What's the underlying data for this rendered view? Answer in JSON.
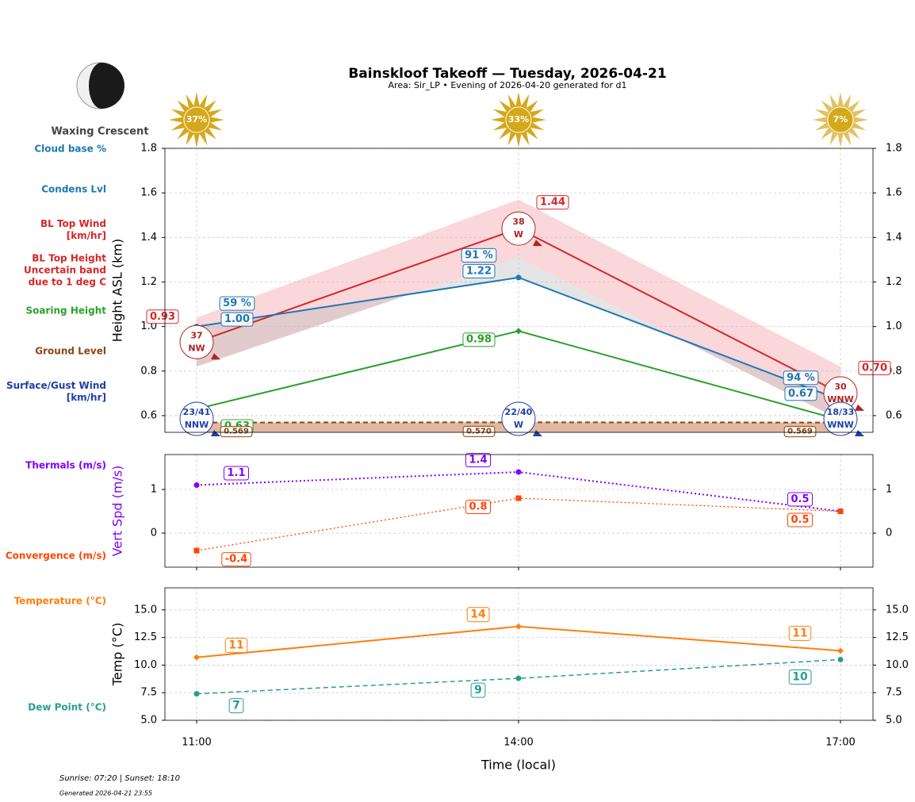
{
  "title": "Bainskloof Takeoff — Tuesday, 2026-04-21",
  "subtitle": "Area: Sir_LP • Evening of 2026-04-20 generated for d1",
  "moon_phase": "Waxing Crescent",
  "sun": {
    "values": [
      37,
      33,
      7
    ],
    "value_labels": [
      "37%",
      "33%",
      "7%"
    ],
    "color": "#d4a81a"
  },
  "footer": {
    "sun_times": "Sunrise: 07:20 | Sunset: 18:10",
    "generated": "Generated 2026-04-21 23:55"
  },
  "xlabel": "Time (local)",
  "chart_data": [
    {
      "type": "line",
      "categories": [
        "11:00",
        "14:00",
        "17:00"
      ],
      "ylabel": "Height ASL (km)",
      "ylim": [
        0.525,
        1.8
      ],
      "yticks": [
        0.6,
        0.8,
        {
          "value": 1,
          "label": "1.0"
        },
        1.2,
        1.4,
        1.6,
        1.8
      ],
      "grid": true,
      "side_labels": [
        {
          "text": "Cloud base %",
          "color": "#1f77b4"
        },
        {
          "text": "Condens Lvl",
          "color": "#1f77b4"
        },
        {
          "text": "BL Top Wind\n[km/hr]",
          "color": "#d62728"
        },
        {
          "text": "BL Top Height\nUncertain band\ndue to 1 deg C",
          "color": "#d62728"
        },
        {
          "text": "Soaring Height",
          "color": "#2ca02c"
        },
        {
          "text": "Ground Level",
          "color": "#8b4513"
        },
        {
          "text": "Surface/Gust Wind\n[km/hr]",
          "color": "#1f3fa8"
        }
      ],
      "series": [
        {
          "color": "#d62728",
          "dash": "solid",
          "marker": "none",
          "values": [
            0.93,
            1.44,
            0.7
          ],
          "value_labels": [
            "0.93",
            "1.44",
            "0.70"
          ],
          "band_low": [
            0.82,
            1.31,
            0.58
          ],
          "band_high": [
            1.04,
            1.57,
            0.82
          ],
          "band_color": "#f4a6ae"
        },
        {
          "color": "#1f77b4",
          "dash": "solid",
          "marker": "circle",
          "values": [
            1.0,
            1.22,
            0.67
          ],
          "value_labels": [
            "1.00",
            "1.22",
            "0.67"
          ],
          "cloud_pct": [
            59,
            91,
            94
          ],
          "cloud_pct_labels": [
            "59 %",
            "91 %",
            "94 %"
          ],
          "fill_color": "#b4b4b4"
        },
        {
          "color": "#2ca02c",
          "dash": "solid",
          "marker": "diamond",
          "values": [
            0.63,
            0.98,
            0.58
          ],
          "value_labels": [
            "0.63",
            "0.98",
            null
          ]
        },
        {
          "color": "#8b4513",
          "dash": "dashed",
          "marker": "none",
          "values": [
            0.569,
            0.57,
            0.569
          ],
          "value_labels": [
            "0.569",
            "0.570",
            "0.569"
          ],
          "fill_below": "#d9a88a"
        }
      ],
      "bl_wind": {
        "color": "#b22222",
        "speed": [
          37,
          38,
          30
        ],
        "dir": [
          "NW",
          "W",
          "WNW"
        ]
      },
      "surface_wind": {
        "color": "#2140a8",
        "speed": [
          23,
          22,
          18
        ],
        "gust": [
          41,
          40,
          33
        ],
        "value_labels": [
          "23/41",
          "22/40",
          "18/33"
        ],
        "dir": [
          "NNW",
          "W",
          "WNW"
        ]
      }
    },
    {
      "type": "line",
      "categories": [
        "11:00",
        "14:00",
        "17:00"
      ],
      "ylabel": "Vert Spd (m/s)",
      "ylabel_color": "#7f00ff",
      "ylim": [
        -0.78,
        1.8
      ],
      "yticks": [
        0,
        1
      ],
      "grid": true,
      "side_labels": [
        {
          "text": "Thermals (m/s)",
          "color": "#7f00ff"
        },
        {
          "text": "Convergence (m/s)",
          "color": "#ff4500"
        }
      ],
      "series": [
        {
          "color": "#7f00ff",
          "dash": "dotted",
          "width": 2,
          "marker": "circle",
          "values": [
            1.1,
            1.4,
            0.5
          ],
          "value_labels": [
            "1.1",
            "1.4",
            "0.5"
          ]
        },
        {
          "color": "#ff4500",
          "dash": "dotted",
          "width": 1.3,
          "marker": "square",
          "values": [
            -0.4,
            0.8,
            0.5
          ],
          "value_labels": [
            "-0.4",
            "0.8",
            "0.5"
          ]
        }
      ]
    },
    {
      "type": "line",
      "categories": [
        "11:00",
        "14:00",
        "17:00"
      ],
      "ylabel": "Temp (°C)",
      "ylim": [
        5,
        17
      ],
      "yticks": [
        {
          "value": 5,
          "label": "5.0"
        },
        {
          "value": 7.5,
          "label": "7.5"
        },
        {
          "value": 10,
          "label": "10.0"
        },
        {
          "value": 12.5,
          "label": "12.5"
        },
        {
          "value": 15,
          "label": "15.0"
        }
      ],
      "grid": true,
      "side_labels": [
        {
          "text": "Temperature (°C)",
          "color": "#ff7f0e"
        },
        {
          "text": "Dew Point (°C)",
          "color": "#2a9d8f"
        }
      ],
      "series": [
        {
          "color": "#ff7f0e",
          "dash": "solid",
          "width": 2,
          "marker": "diamond",
          "values": [
            10.7,
            13.5,
            11.3
          ],
          "value_labels": [
            "11",
            "14",
            "11"
          ]
        },
        {
          "color": "#2a9d8f",
          "dash": "dashed",
          "width": 1.5,
          "marker": "circle",
          "values": [
            7.4,
            8.8,
            10.5
          ],
          "value_labels": [
            "7",
            "9",
            "10"
          ]
        }
      ]
    }
  ]
}
